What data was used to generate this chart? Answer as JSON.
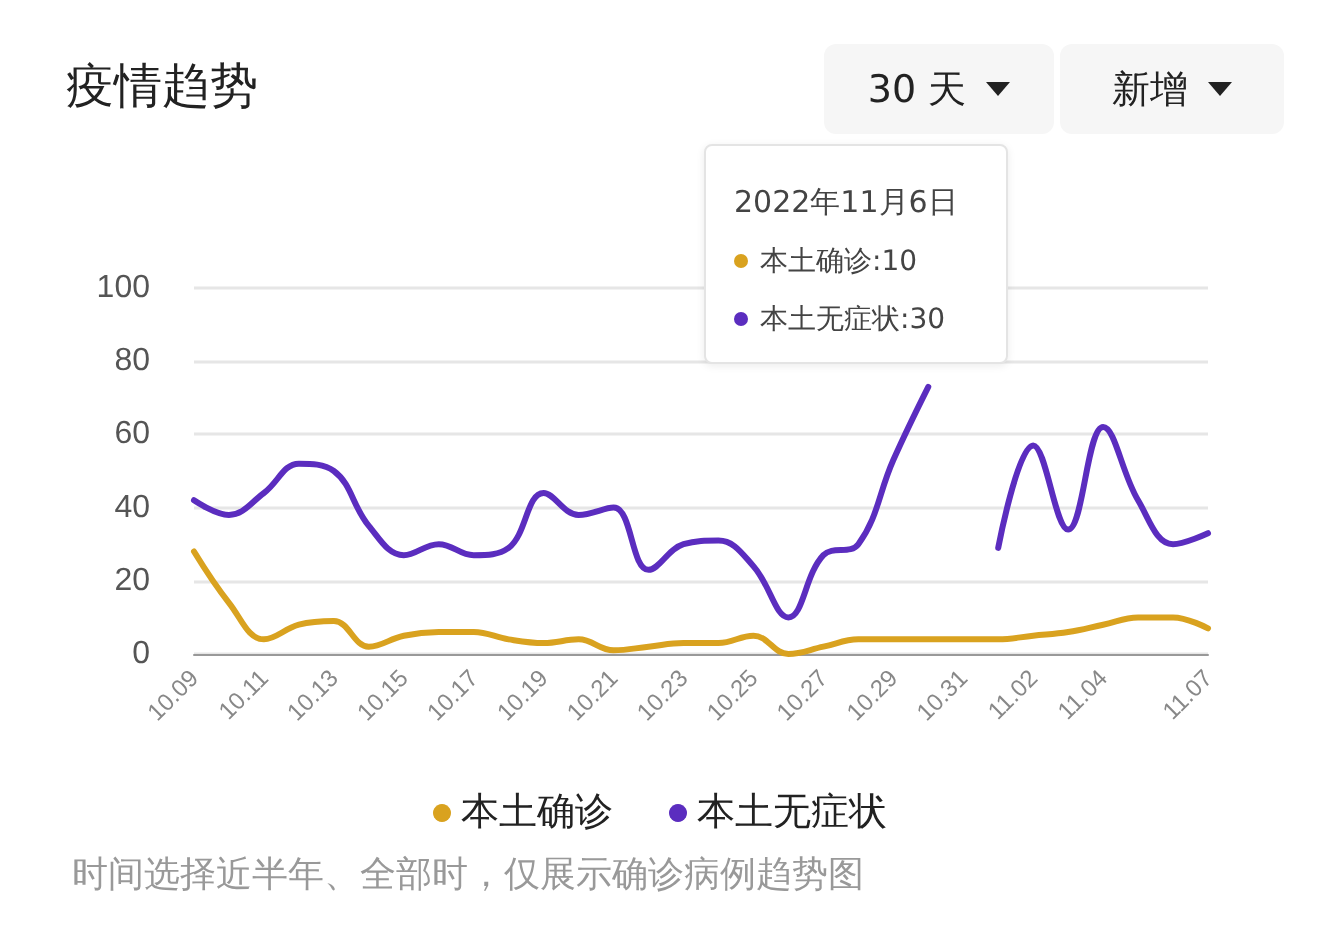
{
  "chart_data": {
    "type": "line",
    "title": "疫情趋势",
    "categories": [
      "10.09",
      null,
      "10.11",
      null,
      "10.13",
      null,
      "10.15",
      null,
      "10.17",
      null,
      "10.19",
      null,
      "10.21",
      null,
      "10.23",
      null,
      "10.25",
      null,
      "10.27",
      null,
      "10.29",
      null,
      "10.31",
      null,
      "11.02",
      null,
      "11.04",
      null,
      null,
      "11.07"
    ],
    "series": [
      {
        "name": "本土确诊",
        "color": "#d9a21f",
        "values": [
          28,
          14,
          4,
          8,
          9,
          2,
          5,
          6,
          6,
          4,
          3,
          4,
          1,
          2,
          3,
          3,
          5,
          0,
          2,
          4,
          4,
          4,
          4,
          4,
          5,
          6,
          8,
          10,
          10,
          7
        ]
      },
      {
        "name": "本土无症状",
        "color": "#5b2dbf",
        "values": [
          42,
          38,
          44,
          52,
          50,
          35,
          27,
          30,
          27,
          29,
          44,
          38,
          40,
          23,
          30,
          31,
          24,
          10,
          27,
          30,
          53,
          73,
          null,
          29,
          57,
          34,
          62,
          42,
          30,
          33
        ]
      }
    ],
    "ylim": [
      0,
      100
    ],
    "yticks": [
      0,
      20,
      40,
      60,
      80,
      100
    ],
    "grid": "y",
    "legend": "bottom",
    "marker": "none",
    "line_style": "solid",
    "annotations": [
      "30 天",
      "新增",
      "2022年11月6日",
      "本土确诊:10",
      "本土无症状:30",
      "时间选择近半年、全部时，仅展示确诊病例趋势图"
    ]
  }
}
